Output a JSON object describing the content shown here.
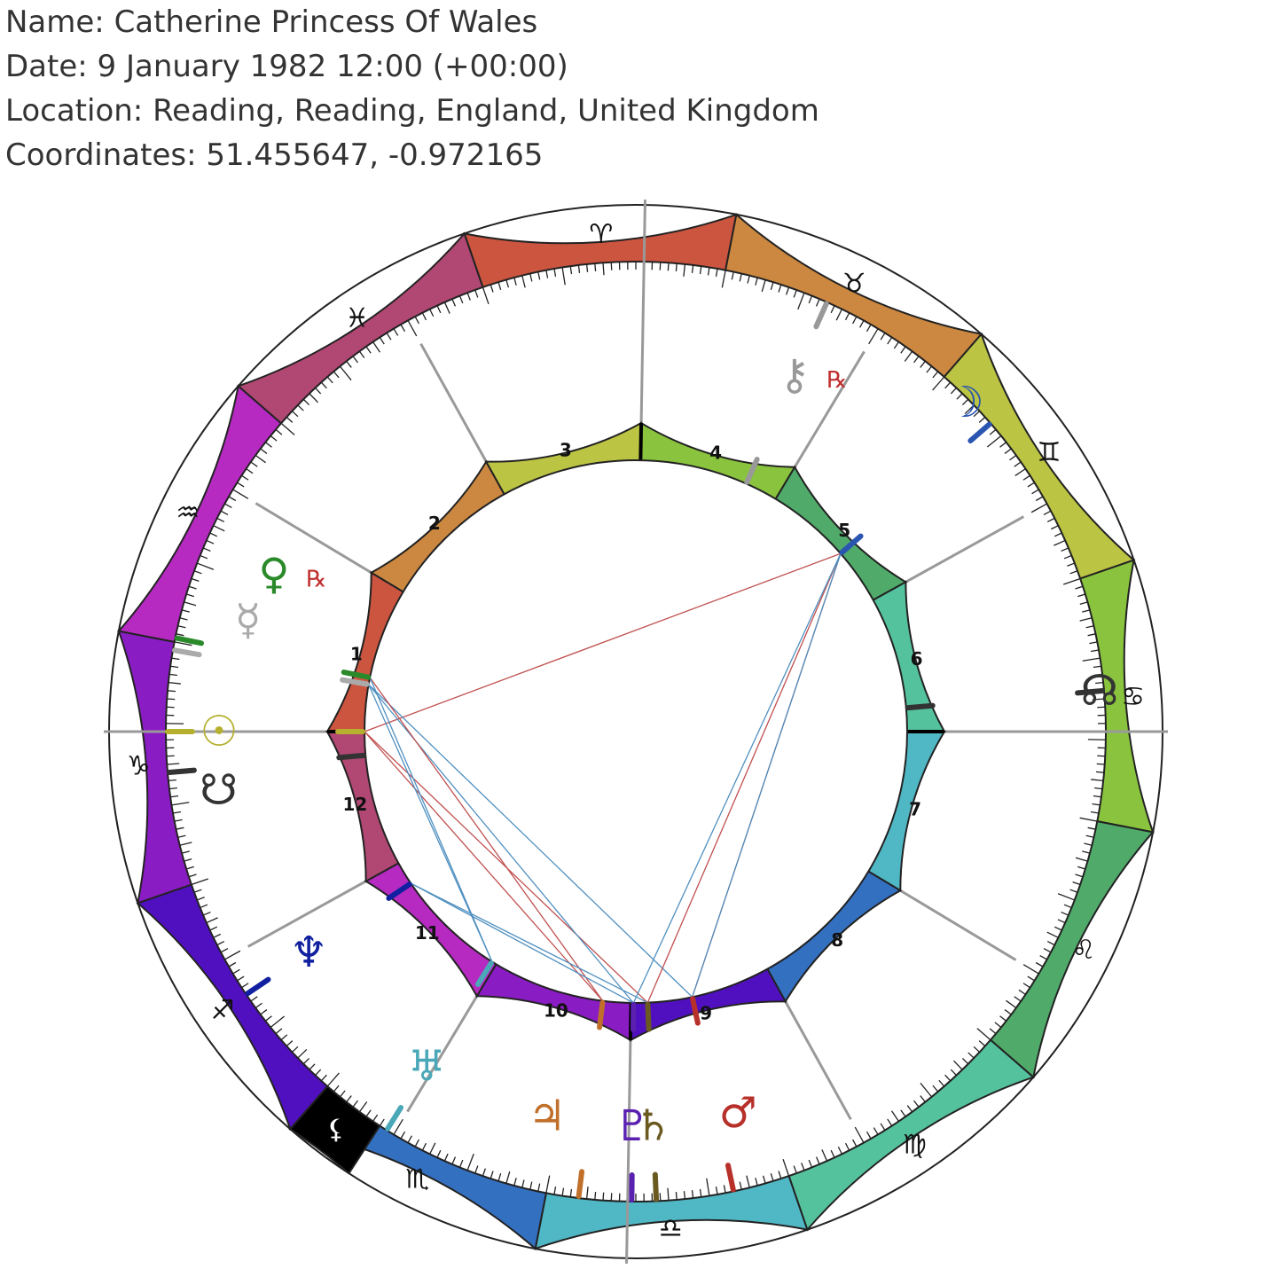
{
  "header": {
    "name_line": "Name: Catherine Princess Of Wales",
    "date_line": "Date: 9 January 1982 12:00 (+00:00)",
    "location_line": "Location: Reading, Reading, England, United Kingdom",
    "coordinates_line": "Coordinates: 51.455647, -0.972165"
  },
  "chart_data": {
    "type": "natal-wheel",
    "ascendant_deg": 289.0,
    "signs": [
      {
        "name": "aries",
        "glyph": "♈",
        "color": "#cc5540"
      },
      {
        "name": "taurus",
        "glyph": "♉",
        "color": "#cc8840"
      },
      {
        "name": "gemini",
        "glyph": "♊",
        "color": "#bbc443"
      },
      {
        "name": "cancer",
        "glyph": "♋",
        "color": "#8ac43e"
      },
      {
        "name": "leo",
        "glyph": "♌",
        "color": "#50aa6a"
      },
      {
        "name": "virgo",
        "glyph": "♍",
        "color": "#55c29e"
      },
      {
        "name": "libra",
        "glyph": "♎",
        "color": "#50b7c4"
      },
      {
        "name": "scorpio",
        "glyph": "♏",
        "color": "#3470c0"
      },
      {
        "name": "sagittarius",
        "glyph": "♐",
        "color": "#5010c0"
      },
      {
        "name": "capricorn",
        "glyph": "♑",
        "color": "#8a1cc4"
      },
      {
        "name": "aquarius",
        "glyph": "♒",
        "color": "#b62ac2"
      },
      {
        "name": "pisces",
        "glyph": "♓",
        "color": "#b04873"
      }
    ],
    "houses": [
      {
        "number": "1",
        "cusp": 289.0,
        "color": "#cc5540"
      },
      {
        "number": "2",
        "cusp": 320.0,
        "color": "#cc8840"
      },
      {
        "number": "3",
        "cusp": 350.0,
        "color": "#bbc443"
      },
      {
        "number": "4",
        "cusp": 20.0,
        "color": "#8ac43e"
      },
      {
        "number": "5",
        "cusp": 50.0,
        "color": "#50aa6a"
      },
      {
        "number": "6",
        "cusp": 80.0,
        "color": "#55c29e"
      },
      {
        "number": "7",
        "cusp": 109.0,
        "color": "#50b7c4"
      },
      {
        "number": "8",
        "cusp": 140.0,
        "color": "#3470c0"
      },
      {
        "number": "9",
        "cusp": 170.0,
        "color": "#5010c0"
      },
      {
        "number": "10",
        "cusp": 200.0,
        "color": "#8a1cc4"
      },
      {
        "number": "11",
        "cusp": 230.0,
        "color": "#b62ac2"
      },
      {
        "number": "12",
        "cusp": 260.0,
        "color": "#b04873"
      }
    ],
    "black_segment": {
      "glyph": "⚸",
      "start": 232.0,
      "end": 240.0
    },
    "points": [
      {
        "name": "sun",
        "glyph": "☉",
        "lon": 289.0,
        "color": "#b5b02e",
        "retro": ""
      },
      {
        "name": "moon",
        "glyph": "☽",
        "lon": 68.0,
        "color": "#2a55b0",
        "retro": ""
      },
      {
        "name": "mercury",
        "glyph": "☿",
        "lon": 299.0,
        "color": "#aaaaaa",
        "retro": ""
      },
      {
        "name": "venus",
        "glyph": "♀",
        "lon": 300.5,
        "color": "#2a8a2a",
        "retro": "℞"
      },
      {
        "name": "mars",
        "glyph": "♂",
        "lon": 187.0,
        "color": "#b8302a",
        "retro": ""
      },
      {
        "name": "jupiter",
        "glyph": "♃",
        "lon": 206.0,
        "color": "#c0702a",
        "retro": ""
      },
      {
        "name": "saturn",
        "glyph": "♄",
        "lon": 196.5,
        "color": "#6a5a20",
        "retro": ""
      },
      {
        "name": "uranus",
        "glyph": "♅",
        "lon": 231.0,
        "color": "#4aa8b8",
        "retro": ""
      },
      {
        "name": "neptune",
        "glyph": "♆",
        "lon": 255.0,
        "color": "#1020a0",
        "retro": ""
      },
      {
        "name": "pluto",
        "glyph": "♇",
        "lon": 199.5,
        "color": "#5a20b0",
        "retro": ""
      },
      {
        "name": "node",
        "glyph": "☊",
        "lon": 104.0,
        "color": "#333333",
        "retro": ""
      },
      {
        "name": "southnode",
        "glyph": "☋",
        "lon": 284.0,
        "color": "#333333",
        "retro": ""
      },
      {
        "name": "chiron",
        "glyph": "⚷",
        "lon": 43.0,
        "color": "#999999",
        "retro": "℞"
      }
    ],
    "aspects": [
      {
        "from": 289.0,
        "to": 68.0,
        "color": "#c05050"
      },
      {
        "from": 289.0,
        "to": 196.5,
        "color": "#c05050"
      },
      {
        "from": 289.0,
        "to": 206.0,
        "color": "#c05050"
      },
      {
        "from": 299.0,
        "to": 199.5,
        "color": "#5090c0"
      },
      {
        "from": 299.0,
        "to": 187.0,
        "color": "#5090c0"
      },
      {
        "from": 299.0,
        "to": 231.0,
        "color": "#5090c0"
      },
      {
        "from": 300.5,
        "to": 206.0,
        "color": "#c05050"
      },
      {
        "from": 300.5,
        "to": 231.0,
        "color": "#5090c0"
      },
      {
        "from": 255.0,
        "to": 199.5,
        "color": "#5090c0"
      },
      {
        "from": 255.0,
        "to": 196.5,
        "color": "#5090c0"
      },
      {
        "from": 68.0,
        "to": 196.5,
        "color": "#c05050"
      },
      {
        "from": 68.0,
        "to": 187.0,
        "color": "#c05050"
      },
      {
        "from": 68.0,
        "to": 199.5,
        "color": "#5090c0"
      },
      {
        "from": 68.0,
        "to": 187.0,
        "color": "#5090c0"
      }
    ]
  }
}
